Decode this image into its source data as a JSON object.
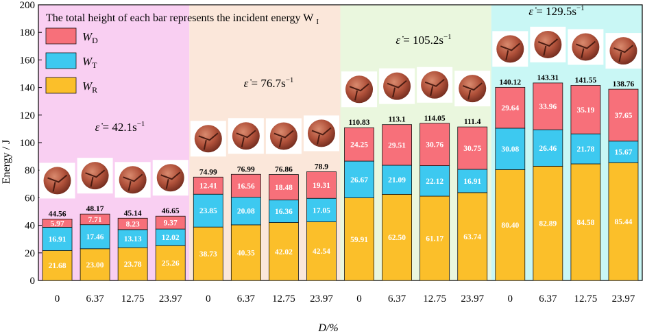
{
  "chart_data": {
    "type": "stacked-bar",
    "title": "The total height of each bar represents the incident energy W",
    "title_subscript": "I",
    "xlabel": "D/%",
    "ylabel": "Energy / J",
    "ylim": [
      0,
      200
    ],
    "yticks": [
      0,
      20,
      40,
      60,
      80,
      100,
      120,
      140,
      160,
      180,
      200
    ],
    "categories": [
      "0",
      "6.37",
      "12.75",
      "23.97",
      "0",
      "6.37",
      "12.75",
      "23.97",
      "0",
      "6.37",
      "12.75",
      "23.97",
      "0",
      "6.37",
      "12.75",
      "23.97"
    ],
    "series": [
      {
        "name": "W",
        "sub": "R",
        "color": "#FBBF2A",
        "values": [
          21.68,
          23.0,
          23.78,
          25.26,
          38.73,
          40.35,
          42.02,
          42.54,
          59.91,
          62.5,
          61.17,
          63.74,
          80.4,
          82.89,
          84.58,
          85.44
        ],
        "labels": [
          "21.68",
          "23.00",
          "23.78",
          "25.26",
          "38.73",
          "40.35",
          "42.02",
          "42.54",
          "59.91",
          "62.50",
          "61.17",
          "63.74",
          "80.40",
          "82.89",
          "84.58",
          "85.44"
        ]
      },
      {
        "name": "W",
        "sub": "T",
        "color": "#3DC9F0",
        "values": [
          16.91,
          17.46,
          13.13,
          12.02,
          23.85,
          20.08,
          16.36,
          17.05,
          26.67,
          21.09,
          22.12,
          16.91,
          30.08,
          26.46,
          21.78,
          15.67
        ],
        "labels": [
          "16.91",
          "17.46",
          "13.13",
          "12.02",
          "23.85",
          "20.08",
          "16.36",
          "17.05",
          "26.67",
          "21.09",
          "22.12",
          "16.91",
          "30.08",
          "26.46",
          "21.78",
          "15.67"
        ]
      },
      {
        "name": "W",
        "sub": "D",
        "color": "#F7707A",
        "values": [
          5.97,
          7.71,
          8.23,
          9.37,
          12.41,
          16.56,
          18.48,
          19.31,
          24.25,
          29.51,
          30.76,
          30.75,
          29.64,
          33.96,
          35.19,
          37.65
        ],
        "labels": [
          "5.97",
          "7.71",
          "8.23",
          "9.37",
          "12.41",
          "16.56",
          "18.48",
          "19.31",
          "24.25",
          "29.51",
          "30.76",
          "30.75",
          "29.64",
          "33.96",
          "35.19",
          "37.65"
        ]
      }
    ],
    "totals": [
      44.56,
      48.17,
      45.14,
      46.65,
      74.99,
      76.99,
      76.86,
      78.9,
      110.83,
      113.1,
      114.05,
      111.4,
      140.12,
      143.31,
      141.55,
      138.76
    ],
    "total_labels": [
      "44.56",
      "48.17",
      "45.14",
      "46.65",
      "74.99",
      "76.99",
      "76.86",
      "78.9",
      "110.83",
      "113.1",
      "114.05",
      "111.4",
      "140.12",
      "143.31",
      "141.55",
      "138.76"
    ],
    "groups": [
      {
        "rate_label": "= 42.1s",
        "sup": "−1",
        "color": "#F9CFF2"
      },
      {
        "rate_label": "= 76.7s",
        "sup": "−1",
        "color": "#FBE7DA"
      },
      {
        "rate_label": "= 105.2s",
        "sup": "−1",
        "color": "#EAF7DE"
      },
      {
        "rate_label": "= 129.5s",
        "sup": "−1",
        "color": "#C9F7F5"
      }
    ],
    "legend": {
      "position": "top-left"
    }
  }
}
